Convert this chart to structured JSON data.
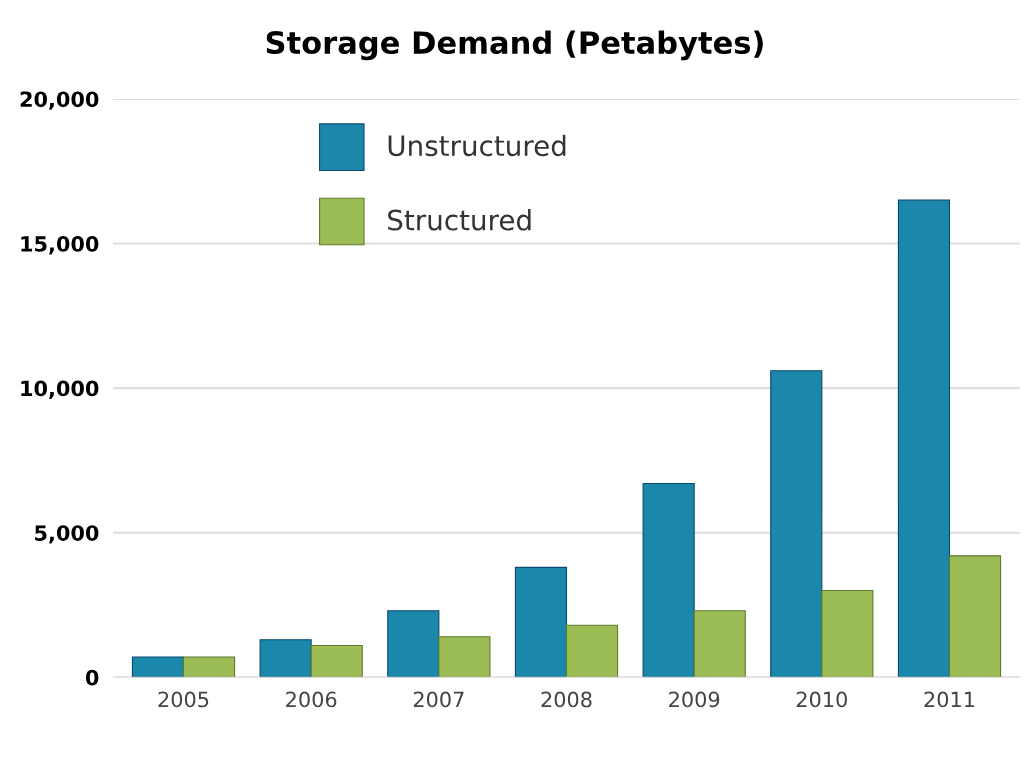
{
  "chart_data": {
    "type": "bar",
    "title": "Storage Demand (Petabytes)",
    "categories": [
      "2005",
      "2006",
      "2007",
      "2008",
      "2009",
      "2010",
      "2011"
    ],
    "series": [
      {
        "name": "Unstructured",
        "color": "#1a87ab",
        "values": [
          700,
          1300,
          2300,
          3800,
          6700,
          10600,
          16500
        ]
      },
      {
        "name": "Structured",
        "color": "#9cbd55",
        "values": [
          700,
          1100,
          1400,
          1800,
          2300,
          3000,
          4200
        ]
      }
    ],
    "ylim": [
      0,
      20000
    ],
    "yticks": [
      0,
      {
        "value": 5000,
        "label": "5,000"
      },
      {
        "value": 10000,
        "label": "10,000"
      },
      {
        "value": 15000,
        "label": "15,000"
      },
      {
        "value": 20000,
        "label": "20,000"
      }
    ],
    "grid": "y",
    "legend": "top left"
  }
}
